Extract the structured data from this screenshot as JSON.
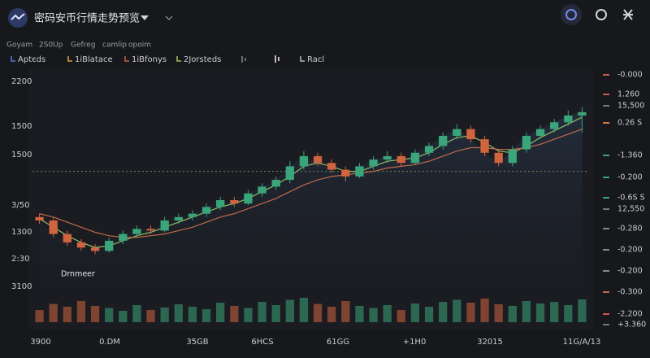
{
  "header": {
    "title": "密码安币行情走势预览"
  },
  "tabs": [
    "Goyam",
    "2S0Up",
    "Gefreg",
    "camlip",
    "opoim"
  ],
  "legend": [
    {
      "label": "Aptєds",
      "color": "#5b7bd5"
    },
    {
      "label": "1iBlatace",
      "color": "#d9a441"
    },
    {
      "label": "1iBfonys",
      "color": "#c85a4a"
    },
    {
      "label": "2Jorsteds",
      "color": "#a4c25a"
    },
    {
      "label": "Racl",
      "color": "#bbbbbb"
    }
  ],
  "axis_labels": {
    "left": [
      "2200",
      "1500",
      "1500",
      "3/50",
      "1300",
      "2:30",
      "3100"
    ],
    "right": [
      {
        "label": "-0.000",
        "color": "#c85a4a"
      },
      {
        "label": "1.260",
        "color": "#c85a4a"
      },
      {
        "label": "15,500",
        "color": "#777777"
      },
      {
        "label": "0.26 S",
        "color": "#d9764a"
      },
      {
        "label": "-1.360",
        "color": "#3aa57a"
      },
      {
        "label": "-0.200",
        "color": "#3aa57a"
      },
      {
        "label": "-0.6S S",
        "color": "#3aa57a"
      },
      {
        "label": "12,550",
        "color": "#777777"
      },
      {
        "label": "-0.280",
        "color": "#888888"
      },
      {
        "label": "-0.200",
        "color": "#888888"
      },
      {
        "label": "-0.200",
        "color": "#888888"
      },
      {
        "label": "-0.300",
        "color": "#c06a4a"
      },
      {
        "label": "-2,200",
        "color": "#c85a4a"
      },
      {
        "label": "+3.360",
        "color": "#777777"
      }
    ],
    "bottom": [
      "3900",
      "0.DM",
      "35GB",
      "6HCS",
      "61GG",
      "+1H0",
      "32015",
      "11G/A/13"
    ]
  },
  "chart_data": {
    "type": "candlestick",
    "annotation": "Drnmeer",
    "ylim": [
      1000,
      2250
    ],
    "vlim": [
      0,
      100
    ],
    "up_color": "#3aa57a",
    "down_color": "#d0643f",
    "reference_line": 1670,
    "candles": [
      [
        1400,
        1420,
        1360,
        1380
      ],
      [
        1380,
        1400,
        1280,
        1300
      ],
      [
        1300,
        1320,
        1230,
        1250
      ],
      [
        1250,
        1270,
        1200,
        1220
      ],
      [
        1220,
        1240,
        1180,
        1200
      ],
      [
        1200,
        1280,
        1190,
        1260
      ],
      [
        1260,
        1320,
        1240,
        1300
      ],
      [
        1300,
        1350,
        1280,
        1330
      ],
      [
        1330,
        1350,
        1300,
        1320
      ],
      [
        1320,
        1400,
        1310,
        1380
      ],
      [
        1380,
        1420,
        1360,
        1400
      ],
      [
        1400,
        1440,
        1380,
        1420
      ],
      [
        1420,
        1480,
        1400,
        1460
      ],
      [
        1460,
        1520,
        1440,
        1500
      ],
      [
        1500,
        1520,
        1460,
        1480
      ],
      [
        1480,
        1560,
        1470,
        1540
      ],
      [
        1540,
        1600,
        1520,
        1580
      ],
      [
        1580,
        1640,
        1560,
        1620
      ],
      [
        1620,
        1730,
        1600,
        1700
      ],
      [
        1700,
        1790,
        1680,
        1760
      ],
      [
        1760,
        1780,
        1700,
        1720
      ],
      [
        1720,
        1740,
        1660,
        1680
      ],
      [
        1680,
        1700,
        1610,
        1640
      ],
      [
        1640,
        1720,
        1630,
        1700
      ],
      [
        1700,
        1760,
        1680,
        1740
      ],
      [
        1740,
        1790,
        1720,
        1760
      ],
      [
        1760,
        1780,
        1700,
        1720
      ],
      [
        1720,
        1800,
        1710,
        1780
      ],
      [
        1780,
        1840,
        1760,
        1820
      ],
      [
        1820,
        1900,
        1800,
        1880
      ],
      [
        1880,
        1950,
        1860,
        1920
      ],
      [
        1920,
        1940,
        1840,
        1860
      ],
      [
        1860,
        1880,
        1760,
        1780
      ],
      [
        1780,
        1800,
        1700,
        1720
      ],
      [
        1720,
        1820,
        1700,
        1800
      ],
      [
        1800,
        1900,
        1780,
        1880
      ],
      [
        1880,
        1940,
        1860,
        1920
      ],
      [
        1920,
        1980,
        1900,
        1960
      ],
      [
        1960,
        2030,
        1940,
        2000
      ],
      [
        2000,
        2050,
        1900,
        2020
      ]
    ],
    "volume": [
      30,
      45,
      38,
      52,
      40,
      35,
      28,
      42,
      30,
      36,
      44,
      38,
      32,
      48,
      40,
      35,
      50,
      42,
      55,
      60,
      45,
      38,
      52,
      40,
      35,
      42,
      30,
      46,
      38,
      50,
      55,
      48,
      58,
      44,
      40,
      52,
      46,
      50,
      42,
      56
    ],
    "series": [
      {
        "color": "#8fbf6a",
        "values": [
          1390,
          1340,
          1290,
          1250,
          1220,
          1230,
          1260,
          1290,
          1310,
          1340,
          1370,
          1400,
          1430,
          1460,
          1480,
          1510,
          1550,
          1590,
          1640,
          1700,
          1720,
          1700,
          1670,
          1670,
          1700,
          1730,
          1740,
          1750,
          1780,
          1830,
          1870,
          1880,
          1840,
          1790,
          1780,
          1820,
          1870,
          1910,
          1950,
          1990
        ]
      },
      {
        "color": "#c06a4a",
        "values": [
          1420,
          1400,
          1370,
          1340,
          1310,
          1290,
          1280,
          1280,
          1290,
          1300,
          1320,
          1340,
          1370,
          1400,
          1420,
          1450,
          1480,
          1510,
          1550,
          1590,
          1620,
          1640,
          1650,
          1660,
          1670,
          1690,
          1700,
          1710,
          1730,
          1760,
          1790,
          1810,
          1810,
          1800,
          1800,
          1810,
          1830,
          1860,
          1890,
          1920
        ]
      }
    ]
  }
}
